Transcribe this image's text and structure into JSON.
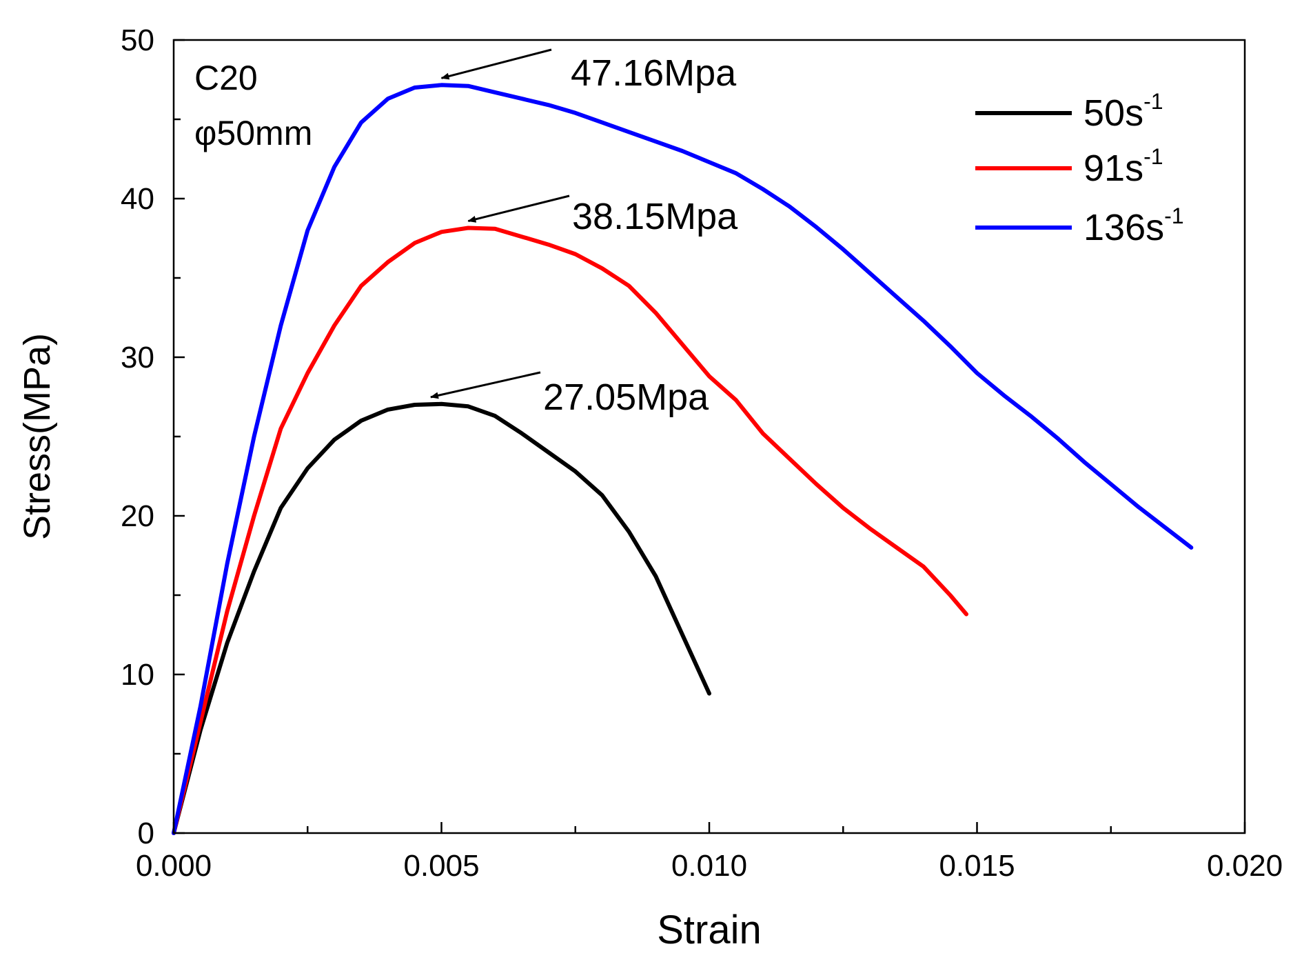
{
  "chart_data": {
    "type": "line",
    "title": "",
    "xlabel": "Strain",
    "ylabel": "Stress(MPa)",
    "xlim": [
      0,
      0.02
    ],
    "ylim": [
      0,
      50
    ],
    "xticks": [
      0.0,
      0.005,
      0.01,
      0.015,
      0.02
    ],
    "xtick_labels": [
      "0.000",
      "0.005",
      "0.010",
      "0.015",
      "0.020"
    ],
    "yticks": [
      0,
      10,
      20,
      30,
      40,
      50
    ],
    "ytick_labels": [
      "0",
      "10",
      "20",
      "30",
      "40",
      "50"
    ],
    "grid": false,
    "legend_position": "top-right",
    "specimen_label": {
      "line1": "C20",
      "line2": "φ50mm"
    },
    "series": [
      {
        "name": "50s-1",
        "legend_base": "50s",
        "legend_sup": "-1",
        "color": "#000000",
        "x": [
          0.0,
          0.0005,
          0.001,
          0.0015,
          0.002,
          0.0025,
          0.003,
          0.0035,
          0.004,
          0.0045,
          0.005,
          0.0055,
          0.006,
          0.0065,
          0.007,
          0.0075,
          0.008,
          0.0085,
          0.009,
          0.0095,
          0.01
        ],
        "y": [
          0.0,
          6.5,
          12.0,
          16.5,
          20.5,
          23.0,
          24.8,
          26.0,
          26.7,
          27.0,
          27.05,
          26.9,
          26.3,
          25.2,
          24.0,
          22.8,
          21.3,
          19.0,
          16.2,
          12.5,
          8.8
        ]
      },
      {
        "name": "91s-1",
        "legend_base": "91s",
        "legend_sup": "-1",
        "color": "#ff0000",
        "x": [
          0.0,
          0.0005,
          0.001,
          0.0015,
          0.002,
          0.0025,
          0.003,
          0.0035,
          0.004,
          0.0045,
          0.005,
          0.0055,
          0.006,
          0.0065,
          0.007,
          0.0075,
          0.008,
          0.0085,
          0.009,
          0.0095,
          0.01,
          0.0105,
          0.011,
          0.0115,
          0.012,
          0.0125,
          0.013,
          0.0135,
          0.014,
          0.0145,
          0.0148
        ],
        "y": [
          0.0,
          7.0,
          14.0,
          20.0,
          25.5,
          29.0,
          32.0,
          34.5,
          36.0,
          37.2,
          37.9,
          38.15,
          38.1,
          37.6,
          37.1,
          36.5,
          35.6,
          34.5,
          32.8,
          30.8,
          28.8,
          27.3,
          25.2,
          23.6,
          22.0,
          20.5,
          19.2,
          18.0,
          16.8,
          15.0,
          13.8
        ]
      },
      {
        "name": "136s-1",
        "legend_base": "136s",
        "legend_sup": "-1",
        "color": "#0000ff",
        "x": [
          0.0,
          0.0005,
          0.001,
          0.0015,
          0.002,
          0.0025,
          0.003,
          0.0035,
          0.004,
          0.0045,
          0.005,
          0.0055,
          0.006,
          0.0065,
          0.007,
          0.0075,
          0.008,
          0.0085,
          0.009,
          0.0095,
          0.01,
          0.0105,
          0.011,
          0.0115,
          0.012,
          0.0125,
          0.013,
          0.0135,
          0.014,
          0.0145,
          0.015,
          0.0155,
          0.016,
          0.0165,
          0.017,
          0.0175,
          0.018,
          0.0185,
          0.019
        ],
        "y": [
          0.0,
          8.0,
          17.0,
          25.0,
          32.0,
          38.0,
          42.0,
          44.8,
          46.3,
          47.0,
          47.16,
          47.1,
          46.7,
          46.3,
          45.9,
          45.4,
          44.8,
          44.2,
          43.6,
          43.0,
          42.3,
          41.6,
          40.6,
          39.5,
          38.2,
          36.8,
          35.3,
          33.8,
          32.3,
          30.7,
          29.0,
          27.6,
          26.3,
          24.9,
          23.4,
          22.0,
          20.6,
          19.3,
          18.0
        ]
      }
    ],
    "annotations": [
      {
        "text": "47.16Mpa",
        "x": 0.005,
        "y": 47.16
      },
      {
        "text": "38.15Mpa",
        "x": 0.0055,
        "y": 38.15
      },
      {
        "text": "27.05Mpa",
        "x": 0.0048,
        "y": 27.05
      }
    ]
  }
}
